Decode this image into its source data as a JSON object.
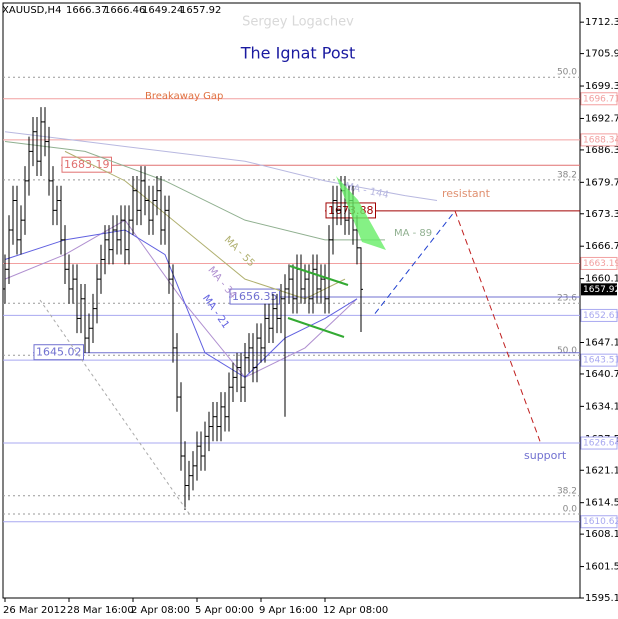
{
  "chart_data": {
    "type": "ohlc",
    "symbol": "XAUUSD,H4",
    "watermark": "Sergey Logachev",
    "title": "The Ignat Post",
    "bar_color": "#000000",
    "categories": [
      "26 Mar 2012",
      null,
      null,
      null,
      null,
      null,
      null,
      null,
      null,
      null,
      null,
      null,
      null,
      null,
      null,
      null,
      "28 Mar 16:00",
      null,
      null,
      null,
      null,
      null,
      null,
      null,
      null,
      null,
      null,
      null,
      null,
      null,
      null,
      null,
      "2 Apr 08:00",
      null,
      null,
      null,
      null,
      null,
      null,
      null,
      null,
      null,
      null,
      null,
      null,
      null,
      null,
      null,
      "5 Apr 00:00",
      null,
      null,
      null,
      null,
      null,
      null,
      null,
      null,
      null,
      null,
      null,
      null,
      null,
      null,
      null,
      "9 Apr 16:00",
      null,
      null,
      null,
      null,
      null,
      null,
      null,
      null,
      null,
      null,
      null,
      null,
      null,
      null,
      null,
      "12 Apr 08:00",
      null,
      null,
      null,
      null,
      null,
      null,
      null,
      null,
      null
    ],
    "open": [
      1658,
      1662,
      1670,
      1676,
      1668,
      1672,
      1680,
      1686,
      1690,
      1684,
      1692,
      1688,
      1680,
      1674,
      1676,
      1668,
      1662,
      1658,
      1660,
      1652,
      1656,
      1648,
      1650,
      1654,
      1660,
      1664,
      1668,
      1666,
      1670,
      1668,
      1672,
      1666,
      1672,
      1678,
      1674,
      1680,
      1676,
      1672,
      1676,
      1678,
      1670,
      1674,
      1660,
      1646,
      1636,
      1624,
      1618,
      1620,
      1622,
      1626,
      1624,
      1628,
      1630,
      1632,
      1630,
      1634,
      1632,
      1638,
      1640,
      1642,
      1638,
      1644,
      1646,
      1642,
      1648,
      1646,
      1652,
      1650,
      1654,
      1652,
      1656,
      1658,
      1660,
      1656,
      1662,
      1658,
      1660,
      1656,
      1662,
      1658,
      1660,
      1656,
      1668,
      1676,
      1674,
      1678,
      1672,
      1676,
      1670,
      1666.37
    ],
    "high": [
      1665,
      1673,
      1679,
      1679,
      1675,
      1683,
      1689,
      1693,
      1693,
      1695,
      1695,
      1691,
      1683,
      1679,
      1679,
      1671,
      1665,
      1663,
      1663,
      1659,
      1659,
      1653,
      1657,
      1663,
      1667,
      1671,
      1671,
      1673,
      1673,
      1675,
      1675,
      1675,
      1681,
      1681,
      1683,
      1683,
      1679,
      1679,
      1681,
      1681,
      1677,
      1677,
      1663,
      1649,
      1639,
      1627,
      1623,
      1625,
      1629,
      1629,
      1631,
      1633,
      1635,
      1635,
      1637,
      1637,
      1641,
      1643,
      1645,
      1645,
      1647,
      1649,
      1649,
      1651,
      1651,
      1655,
      1655,
      1657,
      1657,
      1659,
      1661,
      1663,
      1663,
      1665,
      1665,
      1663,
      1663,
      1665,
      1665,
      1663,
      1663,
      1671,
      1679,
      1679,
      1681,
      1681,
      1679,
      1679,
      1673,
      1666.46
    ],
    "low": [
      1655,
      1659,
      1667,
      1665,
      1665,
      1669,
      1677,
      1683,
      1681,
      1681,
      1685,
      1677,
      1671,
      1671,
      1665,
      1659,
      1655,
      1655,
      1649,
      1649,
      1645,
      1645,
      1647,
      1651,
      1657,
      1661,
      1663,
      1663,
      1665,
      1665,
      1663,
      1663,
      1669,
      1671,
      1671,
      1673,
      1669,
      1669,
      1673,
      1667,
      1667,
      1657,
      1643,
      1633,
      1621,
      1613,
      1615,
      1617,
      1619,
      1621,
      1621,
      1625,
      1627,
      1627,
      1627,
      1629,
      1629,
      1635,
      1637,
      1635,
      1635,
      1641,
      1639,
      1639,
      1643,
      1643,
      1647,
      1647,
      1649,
      1649,
      1632,
      1655,
      1653,
      1653,
      1655,
      1655,
      1653,
      1653,
      1655,
      1655,
      1653,
      1653,
      1665,
      1671,
      1671,
      1669,
      1669,
      1667,
      1663,
      1649.24
    ],
    "close": [
      1662,
      1670,
      1676,
      1668,
      1672,
      1680,
      1686,
      1690,
      1684,
      1692,
      1688,
      1680,
      1674,
      1676,
      1668,
      1662,
      1658,
      1660,
      1652,
      1656,
      1648,
      1650,
      1654,
      1660,
      1664,
      1668,
      1666,
      1670,
      1668,
      1672,
      1666,
      1672,
      1678,
      1674,
      1680,
      1676,
      1672,
      1676,
      1678,
      1670,
      1674,
      1660,
      1646,
      1636,
      1624,
      1618,
      1620,
      1622,
      1626,
      1624,
      1628,
      1630,
      1632,
      1630,
      1634,
      1632,
      1638,
      1640,
      1642,
      1638,
      1644,
      1646,
      1642,
      1648,
      1646,
      1652,
      1650,
      1654,
      1652,
      1656,
      1658,
      1660,
      1656,
      1662,
      1658,
      1660,
      1656,
      1662,
      1658,
      1660,
      1656,
      1668,
      1676,
      1674,
      1678,
      1672,
      1676,
      1670,
      1666.37,
      1657.92
    ],
    "xlim": [
      -0.5,
      143.75
    ],
    "ylim": [
      1595.1,
      1716.2
    ],
    "yticks": [
      {
        "value": 1712.3,
        "label": "1712.30"
      },
      {
        "value": 1705.9,
        "label": "1705.90"
      },
      {
        "value": 1699.3,
        "label": "1699.30"
      },
      {
        "value": 1692.7,
        "label": "1692.70"
      },
      {
        "value": 1686.3,
        "label": "1686.30"
      },
      {
        "value": 1679.7,
        "label": "1679.70"
      },
      {
        "value": 1673.3,
        "label": "1673.30"
      },
      {
        "value": 1666.7,
        "label": "1666.70"
      },
      {
        "value": 1660.1,
        "label": "1660.10"
      },
      {
        "value": 1647.1,
        "label": "1647.10"
      },
      {
        "value": 1640.7,
        "label": "1640.70"
      },
      {
        "value": 1634.1,
        "label": "1634.10"
      },
      {
        "value": 1627.5,
        "label": "1627.50"
      },
      {
        "value": 1621.1,
        "label": "1621.10"
      },
      {
        "value": 1614.5,
        "label": "1614.50"
      },
      {
        "value": 1608.1,
        "label": "1608.10"
      },
      {
        "value": 1601.5,
        "label": "1601.50"
      },
      {
        "value": 1595.1,
        "label": "1595.10"
      }
    ],
    "levels": [
      {
        "value": 1696.71,
        "color": "#f2a0a0"
      },
      {
        "value": 1688.34,
        "color": "#f2a0a0"
      },
      {
        "value": 1663.19,
        "color": "#f2a0a0"
      },
      {
        "value": 1652.61,
        "color": "#a8a8f0"
      },
      {
        "value": 1643.51,
        "color": "#a8a8f0"
      },
      {
        "value": 1626.64,
        "color": "#a8a8f0"
      },
      {
        "value": 1610.62,
        "color": "#a8a8f0"
      }
    ],
    "marked_levels": [
      {
        "value": 1683.19,
        "color": "#e07070",
        "from": 14
      },
      {
        "value": 1645.02,
        "color": "#7070d0",
        "from": 7
      },
      {
        "value": 1656.35,
        "color": "#7070d0",
        "from": 56
      },
      {
        "value": 1673.88,
        "color": "#a00000",
        "from": 80
      }
    ],
    "fib": [
      {
        "value": 1701.1,
        "label": "50.0"
      },
      {
        "value": 1680.2,
        "label": "38.2"
      },
      {
        "value": 1655.1,
        "label": "23.6"
      },
      {
        "value": 1644.5,
        "label": "50.0"
      },
      {
        "value": 1615.9,
        "label": "38.2"
      },
      {
        "value": 1612.2,
        "label": "0.0"
      }
    ],
    "indicators": [
      {
        "name": "MA - 144",
        "color": "#b8b8e0",
        "x": [
          0,
          20,
          40,
          60,
          80,
          100,
          108
        ],
        "values": [
          1690,
          1688,
          1686,
          1684,
          1680,
          1677,
          1676
        ]
      },
      {
        "name": "MA - 89",
        "color": "#90b090",
        "x": [
          0,
          20,
          40,
          60,
          80,
          95
        ],
        "values": [
          1688,
          1686,
          1680,
          1672,
          1668,
          1668
        ]
      },
      {
        "name": "MA - 55",
        "color": "#b0b070",
        "x": [
          15,
          30,
          45,
          60,
          75,
          85
        ],
        "values": [
          1686,
          1680,
          1670,
          1660,
          1656,
          1660
        ]
      },
      {
        "name": "MA - 34",
        "color": "#b090d0",
        "x": [
          0,
          15,
          30,
          45,
          60,
          75,
          88
        ],
        "values": [
          1660,
          1665,
          1672,
          1655,
          1640,
          1646,
          1656
        ]
      },
      {
        "name": "MA - 21",
        "color": "#6060e0",
        "x": [
          0,
          15,
          30,
          40,
          50,
          60,
          70,
          80,
          88
        ],
        "values": [
          1664,
          1668,
          1670,
          1665,
          1645,
          1640,
          1648,
          1652,
          1656
        ]
      }
    ],
    "forecast": {
      "x": [
        92.5,
        112.5,
        133.75
      ],
      "values": [
        1653,
        1673.88,
        1627
      ]
    },
    "annotations": {
      "gap": "Breakaway Gap",
      "resistant": "resistant",
      "support": "support"
    }
  }
}
